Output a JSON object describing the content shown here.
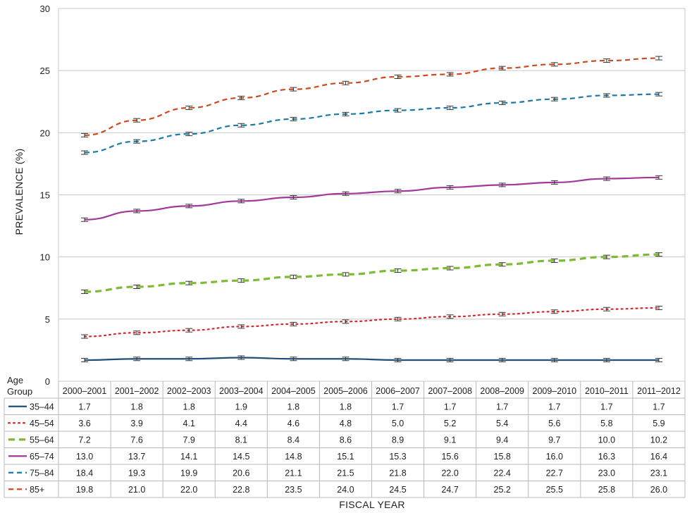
{
  "chart_data": {
    "type": "line",
    "ylabel": "PREVALENCE (%)",
    "xlabel": "FISCAL YEAR",
    "ylim": [
      0,
      30
    ],
    "yticks": [
      0,
      5,
      10,
      15,
      20,
      25,
      30
    ],
    "grid": true,
    "legend": "table-below",
    "table_header": [
      "Age",
      "Group"
    ],
    "categories": [
      "2000–2001",
      "2001–2002",
      "2002–2003",
      "2003–2004",
      "2004–2005",
      "2005–2006",
      "2006–2007",
      "2007–2008",
      "2008–2009",
      "2009–2010",
      "2010–2011",
      "2011–2012"
    ],
    "series": [
      {
        "name": "35–44",
        "color": "#1f4e79",
        "style": "solid",
        "values": [
          1.7,
          1.8,
          1.8,
          1.9,
          1.8,
          1.8,
          1.7,
          1.7,
          1.7,
          1.7,
          1.7,
          1.7
        ]
      },
      {
        "name": "45–54",
        "color": "#d7262b",
        "style": "dotted",
        "values": [
          3.6,
          3.9,
          4.1,
          4.4,
          4.6,
          4.8,
          5.0,
          5.2,
          5.4,
          5.6,
          5.8,
          5.9
        ]
      },
      {
        "name": "55–64",
        "color": "#7dbb35",
        "style": "dashed-thick",
        "values": [
          7.2,
          7.6,
          7.9,
          8.1,
          8.4,
          8.6,
          8.9,
          9.1,
          9.4,
          9.7,
          10.0,
          10.2
        ]
      },
      {
        "name": "65–74",
        "color": "#a3389a",
        "style": "solid",
        "values": [
          13.0,
          13.7,
          14.1,
          14.5,
          14.8,
          15.1,
          15.3,
          15.6,
          15.8,
          16.0,
          16.3,
          16.4
        ]
      },
      {
        "name": "75–84",
        "color": "#1b7aa3",
        "style": "dashed",
        "values": [
          18.4,
          19.3,
          19.9,
          20.6,
          21.1,
          21.5,
          21.8,
          22.0,
          22.4,
          22.7,
          23.0,
          23.1
        ]
      },
      {
        "name": "85+",
        "color": "#cc4a1e",
        "style": "dashed",
        "values": [
          19.8,
          21.0,
          22.0,
          22.8,
          23.5,
          24.0,
          24.5,
          24.7,
          25.2,
          25.5,
          25.8,
          26.0
        ]
      }
    ]
  }
}
